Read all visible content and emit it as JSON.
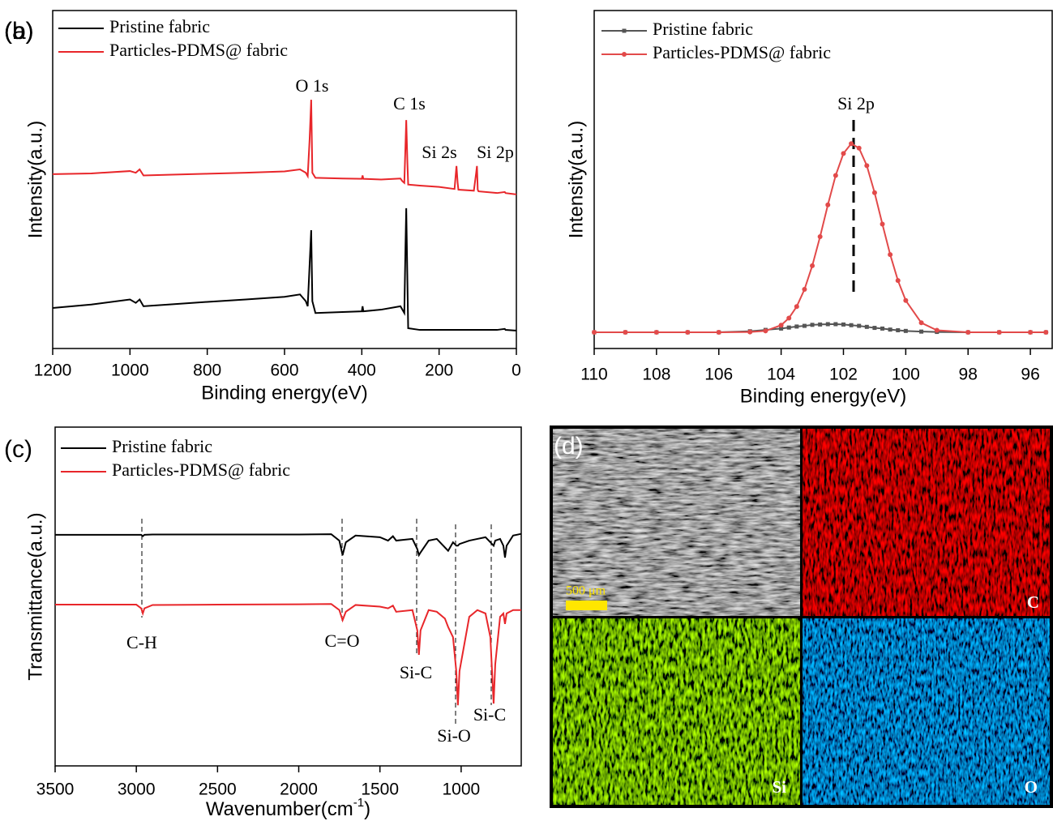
{
  "chart_data": [
    {
      "type": "line",
      "panel_label": "(a)",
      "x_label": "Binding energy(eV)",
      "y_label": "Intensity(a.u.)",
      "xlim": [
        1200,
        0
      ],
      "xticks": [
        1200,
        1000,
        800,
        600,
        400,
        200,
        0
      ],
      "ylim": [
        0,
        100
      ],
      "legend": "upper left",
      "x": [
        1200,
        1100,
        1000,
        985,
        975,
        965,
        900,
        800,
        700,
        600,
        560,
        545,
        540,
        535,
        531,
        528,
        520,
        450,
        400,
        398,
        396,
        350,
        300,
        295,
        290,
        287,
        285,
        282,
        280,
        250,
        200,
        160,
        155,
        152,
        150,
        110,
        104,
        102,
        100,
        98,
        50,
        30,
        28,
        0
      ],
      "series": [
        {
          "name": "Pristine fabric",
          "color": "#000000",
          "values": [
            12,
            13,
            14.5,
            13.5,
            14.5,
            12.5,
            13,
            13.8,
            14.5,
            15.3,
            16,
            14,
            12.5,
            25,
            35,
            14,
            10.5,
            10.8,
            11,
            12.5,
            11,
            11.5,
            12.5,
            11.5,
            10.5,
            30,
            41.5,
            20,
            6,
            5.5,
            5.5,
            5.5,
            5.5,
            5.5,
            5.5,
            5.5,
            5.5,
            5.5,
            5.5,
            5.5,
            5.5,
            5.8,
            5.5,
            5.3
          ]
        },
        {
          "name": "Particles-PDMS@ fabric",
          "color": "#e8262a",
          "values": [
            51.6,
            51.8,
            52.5,
            52,
            53,
            51.2,
            51.4,
            51.7,
            52,
            52.4,
            53,
            52,
            51,
            62,
            73.6,
            52,
            50.5,
            50.3,
            50.2,
            51.2,
            50.2,
            50,
            50.3,
            49.5,
            49,
            60,
            67.6,
            55,
            48.5,
            48.2,
            47.8,
            47.2,
            54,
            49,
            47,
            46.7,
            52,
            54,
            47,
            46.5,
            46,
            46.3,
            46,
            45.6
          ]
        }
      ],
      "annotations": [
        "O 1s",
        "C 1s",
        "Si 2s",
        "Si 2p"
      ]
    },
    {
      "type": "line",
      "panel_label": "(b)",
      "x_label": "Binding energy(eV)",
      "y_label": "Intensity(a.u.)",
      "xlim": [
        110,
        95.3
      ],
      "xticks": [
        110,
        108,
        106,
        104,
        102,
        100,
        98,
        96
      ],
      "ylim": [
        0,
        100
      ],
      "legend": "upper left",
      "x": [
        110,
        109,
        108,
        107,
        106,
        105,
        104.5,
        104,
        103.75,
        103.5,
        103.25,
        103,
        102.75,
        102.5,
        102.25,
        102,
        101.75,
        101.5,
        101.25,
        101,
        100.75,
        100.5,
        100.25,
        100,
        99.5,
        99,
        98,
        97,
        96,
        95.5
      ],
      "series": [
        {
          "name": "Pristine fabric",
          "color": "#555555",
          "marker": "square",
          "values": [
            4.8,
            4.8,
            4.8,
            4.8,
            4.8,
            5.1,
            5.5,
            5.9,
            6.2,
            6.5,
            6.7,
            7.0,
            7.1,
            7.2,
            7.2,
            7.1,
            6.9,
            6.7,
            6.4,
            6.1,
            5.9,
            5.6,
            5.4,
            5.2,
            5.0,
            4.9,
            4.8,
            4.8,
            4.8,
            4.8
          ]
        },
        {
          "name": "Particles-PDMS@ fabric",
          "color": "#e24a4a",
          "marker": "circle",
          "values": [
            4.8,
            4.8,
            4.8,
            4.8,
            4.8,
            4.9,
            5.2,
            6.9,
            9.0,
            12.4,
            17.5,
            24.5,
            33.1,
            42.5,
            51.2,
            57.7,
            60.6,
            59.3,
            54.1,
            46.1,
            36.8,
            27.8,
            20.1,
            14.2,
            7.6,
            5.4,
            4.8,
            4.8,
            4.8,
            4.8
          ]
        }
      ],
      "annotations": [
        "Si 2p"
      ]
    },
    {
      "type": "line",
      "panel_label": "(c)",
      "x_label": [
        "Wavenumber(cm",
        "-1",
        ")"
      ],
      "y_label": "Transmittance(a.u.)",
      "xlim": [
        3500,
        630
      ],
      "xticks": [
        3500,
        3000,
        2500,
        2000,
        1500,
        1000
      ],
      "ylim": [
        0,
        100
      ],
      "legend": "upper left",
      "x": [
        3500,
        3000,
        2970,
        2960,
        2950,
        2900,
        2500,
        2000,
        1800,
        1750,
        1730,
        1710,
        1650,
        1500,
        1450,
        1420,
        1400,
        1300,
        1270,
        1260,
        1250,
        1200,
        1150,
        1100,
        1080,
        1050,
        1030,
        1020,
        1010,
        950,
        900,
        850,
        820,
        800,
        790,
        760,
        740,
        730,
        720,
        680,
        630
      ],
      "series": [
        {
          "name": "Pristine fabric",
          "color": "#000000",
          "values": [
            68.2,
            68.2,
            68.2,
            67.8,
            68.2,
            68.3,
            68.3,
            68.3,
            68.4,
            66.5,
            62.2,
            66,
            68,
            67.5,
            66.5,
            67.8,
            66.5,
            67,
            64,
            62.2,
            63,
            66.5,
            67,
            64.5,
            63.5,
            66,
            65,
            65,
            65.5,
            66.5,
            67,
            67.5,
            66,
            65,
            66.5,
            67,
            65,
            61.5,
            65,
            68,
            68.5
          ]
        },
        {
          "name": "Particles-PDMS@ fabric",
          "color": "#e8262a",
          "values": [
            47.6,
            47.6,
            46.5,
            45,
            46.5,
            47.5,
            47.6,
            47.7,
            47.8,
            46,
            43,
            45.5,
            47.5,
            47,
            46.5,
            47.3,
            45.5,
            46,
            40,
            32.8,
            40,
            46,
            45.5,
            43.5,
            41,
            38,
            28,
            17.9,
            28,
            44,
            46,
            45,
            38,
            18.4,
            30,
            44,
            45,
            41.9,
            45,
            46,
            46
          ]
        }
      ],
      "annotations": [
        "C-H",
        "C=O",
        "Si-C",
        "Si-O",
        "Si-C"
      ]
    }
  ],
  "figure_d": {
    "panel_label": "(d)",
    "scale_bar": "500 μm",
    "maps": [
      "C",
      "Si",
      "O"
    ]
  }
}
